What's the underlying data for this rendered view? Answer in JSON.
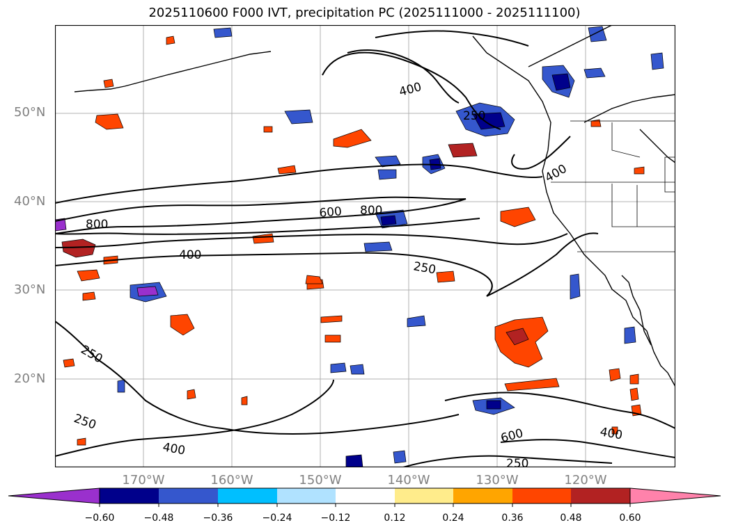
{
  "title": "2025110600 F000 IVT, precipitation PC (2025111000 - 2025111100)",
  "lat_labels": [
    "50°N",
    "40°N",
    "30°N",
    "20°N"
  ],
  "lon_labels": [
    "170°W",
    "160°W",
    "150°W",
    "140°W",
    "130°W",
    "120°W"
  ],
  "contour_labels": [
    "400",
    "250",
    "400",
    "600",
    "800",
    "800",
    "400",
    "250",
    "250",
    "250",
    "600",
    "250",
    "400",
    "400"
  ],
  "colorbar": {
    "colors": [
      "#9a30cd",
      "#00008b",
      "#3557cd",
      "#00bfff",
      "#b0e2ff",
      "#ffffff",
      "#ffec8b",
      "#ffa500",
      "#ff4500",
      "#b22222",
      "#ff82ab"
    ],
    "ticks": [
      "−0.60",
      "−0.48",
      "−0.36",
      "−0.24",
      "−0.12",
      "0.12",
      "0.24",
      "0.36",
      "0.48",
      "0.60"
    ]
  }
}
